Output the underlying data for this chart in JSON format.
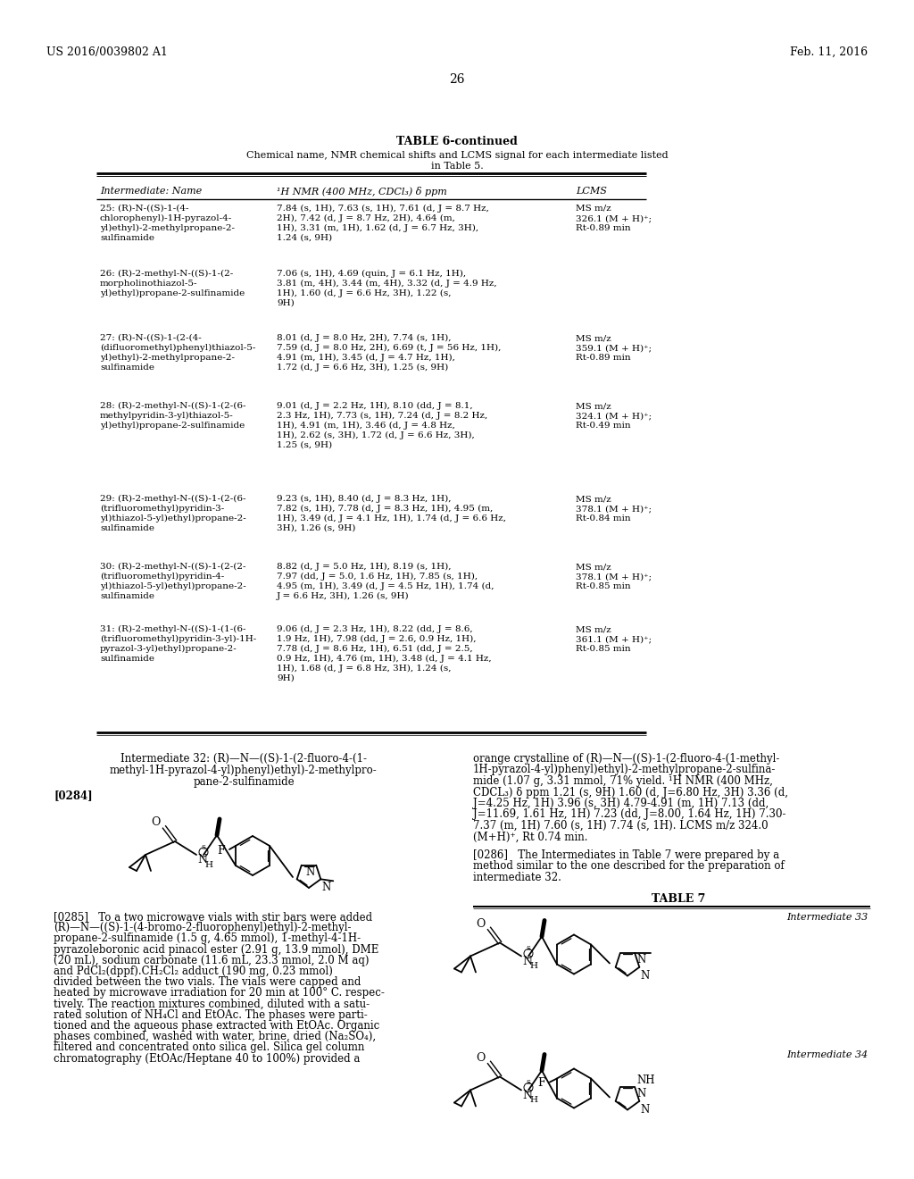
{
  "bg_color": "#ffffff",
  "header_left": "US 2016/0039802 A1",
  "header_right": "Feb. 11, 2016",
  "page_number": "26",
  "table_title": "TABLE 6-continued",
  "table_subtitle1": "Chemical name, NMR chemical shifts and LCMS signal for each intermediate listed",
  "table_subtitle2": "in Table 5.",
  "col_header1": "Intermediate: Name",
  "col_header2": "¹H NMR (400 MHz, CDCl₃) δ ppm",
  "col_header3": "LCMS",
  "rows": [
    {
      "name": "25: (R)-N-((S)-1-(4-\nchlorophenyl)-1H-pyrazol-4-\nyl)ethyl)-2-methylpropane-2-\nsulfinamide",
      "nmr": "7.84 (s, 1H), 7.63 (s, 1H), 7.61 (d, J = 8.7 Hz,\n2H), 7.42 (d, J = 8.7 Hz, 2H), 4.64 (m,\n1H), 3.31 (m, 1H), 1.62 (d, J = 6.7 Hz, 3H),\n1.24 (s, 9H)",
      "lcms": "MS m/z\n326.1 (M + H)⁺;\nRt-0.89 min"
    },
    {
      "name": "26: (R)-2-methyl-N-((S)-1-(2-\nmorpholinothiazol-5-\nyl)ethyl)propane-2-sulfinamide",
      "nmr": "7.06 (s, 1H), 4.69 (quin, J = 6.1 Hz, 1H),\n3.81 (m, 4H), 3.44 (m, 4H), 3.32 (d, J = 4.9 Hz,\n1H), 1.60 (d, J = 6.6 Hz, 3H), 1.22 (s,\n9H)",
      "lcms": ""
    },
    {
      "name": "27: (R)-N-((S)-1-(2-(4-\n(difluoromethyl)phenyl)thiazol-5-\nyl)ethyl)-2-methylpropane-2-\nsulfinamide",
      "nmr": "8.01 (d, J = 8.0 Hz, 2H), 7.74 (s, 1H),\n7.59 (d, J = 8.0 Hz, 2H), 6.69 (t, J = 56 Hz, 1H),\n4.91 (m, 1H), 3.45 (d, J = 4.7 Hz, 1H),\n1.72 (d, J = 6.6 Hz, 3H), 1.25 (s, 9H)",
      "lcms": "MS m/z\n359.1 (M + H)⁺;\nRt-0.89 min"
    },
    {
      "name": "28: (R)-2-methyl-N-((S)-1-(2-(6-\nmethylpyridin-3-yl)thiazol-5-\nyl)ethyl)propane-2-sulfinamide",
      "nmr": "9.01 (d, J = 2.2 Hz, 1H), 8.10 (dd, J = 8.1,\n2.3 Hz, 1H), 7.73 (s, 1H), 7.24 (d, J = 8.2 Hz,\n1H), 4.91 (m, 1H), 3.46 (d, J = 4.8 Hz,\n1H), 2.62 (s, 3H), 1.72 (d, J = 6.6 Hz, 3H),\n1.25 (s, 9H)",
      "lcms": "MS m/z\n324.1 (M + H)⁺;\nRt-0.49 min"
    },
    {
      "name": "29: (R)-2-methyl-N-((S)-1-(2-(6-\n(trifluoromethyl)pyridin-3-\nyl)thiazol-5-yl)ethyl)propane-2-\nsulfinamide",
      "nmr": "9.23 (s, 1H), 8.40 (d, J = 8.3 Hz, 1H),\n7.82 (s, 1H), 7.78 (d, J = 8.3 Hz, 1H), 4.95 (m,\n1H), 3.49 (d, J = 4.1 Hz, 1H), 1.74 (d, J = 6.6 Hz,\n3H), 1.26 (s, 9H)",
      "lcms": "MS m/z\n378.1 (M + H)⁺;\nRt-0.84 min"
    },
    {
      "name": "30: (R)-2-methyl-N-((S)-1-(2-(2-\n(trifluoromethyl)pyridin-4-\nyl)thiazol-5-yl)ethyl)propane-2-\nsulfinamide",
      "nmr": "8.82 (d, J = 5.0 Hz, 1H), 8.19 (s, 1H),\n7.97 (dd, J = 5.0, 1.6 Hz, 1H), 7.85 (s, 1H),\n4.95 (m, 1H), 3.49 (d, J = 4.5 Hz, 1H), 1.74 (d,\nJ = 6.6 Hz, 3H), 1.26 (s, 9H)",
      "lcms": "MS m/z\n378.1 (M + H)⁺;\nRt-0.85 min"
    },
    {
      "name": "31: (R)-2-methyl-N-((S)-1-(1-(6-\n(trifluoromethyl)pyridin-3-yl)-1H-\npyrazol-3-yl)ethyl)propane-2-\nsulfinamide",
      "nmr": "9.06 (d, J = 2.3 Hz, 1H), 8.22 (dd, J = 8.6,\n1.9 Hz, 1H), 7.98 (dd, J = 2.6, 0.9 Hz, 1H),\n7.78 (d, J = 8.6 Hz, 1H), 6.51 (dd, J = 2.5,\n0.9 Hz, 1H), 4.76 (m, 1H), 3.48 (d, J = 4.1 Hz,\n1H), 1.68 (d, J = 6.8 Hz, 3H), 1.24 (s,\n9H)",
      "lcms": "MS m/z\n361.1 (M + H)⁺;\nRt-0.85 min"
    }
  ],
  "int32_title_lines": [
    "Intermediate 32: (R)—N—((S)-1-(2-fluoro-4-(1-",
    "methyl-1H-pyrazol-4-yl)phenyl)ethyl)-2-methylpro-",
    "pane-2-sulfinamide"
  ],
  "int32_tag": "[0284]",
  "int0285_lines": [
    "[0285]   To a two microwave vials with stir bars were added",
    "(R)—N—((S)-1-(4-bromo-2-fluorophenyl)ethyl)-2-methyl-",
    "propane-2-sulfinamide (1.5 g, 4.65 mmol), 1-methyl-4-1H-",
    "pyrazoleboronic acid pinacol ester (2.91 g, 13.9 mmol), DME",
    "(20 mL), sodium carbonate (11.6 mL, 23.3 mmol, 2.0 M aq)",
    "and PdCl₂(dppf).CH₂Cl₂ adduct (190 mg, 0.23 mmol)",
    "divided between the two vials. The vials were capped and",
    "heated by microwave irradiation for 20 min at 100° C. respec-",
    "tively. The reaction mixtures combined, diluted with a satu-",
    "rated solution of NH₄Cl and EtOAc. The phases were parti-",
    "tioned and the aqueous phase extracted with EtOAc. Organic",
    "phases combined, washed with water, brine, dried (Na₂SO₄),",
    "filtered and concentrated onto silica gel. Silica gel column",
    "chromatography (EtOAc/Heptane 40 to 100%) provided a"
  ],
  "int32_right_lines": [
    "orange crystalline of (R)—N—((S)-1-(2-fluoro-4-(1-methyl-",
    "1H-pyrazol-4-yl)phenyl)ethyl)-2-methylpropane-2-sulfina-",
    "mide (1.07 g, 3.31 mmol, 71% yield. ¹H NMR (400 MHz,",
    "CDCL₃) δ ppm 1.21 (s, 9H) 1.60 (d, J=6.80 Hz, 3H) 3.36 (d,",
    "J=4.25 Hz, 1H) 3.96 (s, 3H) 4.79-4.91 (m, 1H) 7.13 (dd,",
    "J=11.69, 1.61 Hz, 1H) 7.23 (dd, J=8.00, 1.64 Hz, 1H) 7.30-",
    "7.37 (m, 1H) 7.60 (s, 1H) 7.74 (s, 1H). LCMS m/z 324.0",
    "(M+H)⁺, Rt 0.74 min."
  ],
  "int0286_lines": [
    "[0286]   The Intermediates in Table 7 were prepared by a",
    "method similar to the one described for the preparation of",
    "intermediate 32."
  ],
  "table7_title": "TABLE 7",
  "int33_label": "Intermediate 33",
  "int34_label": "Intermediate 34"
}
